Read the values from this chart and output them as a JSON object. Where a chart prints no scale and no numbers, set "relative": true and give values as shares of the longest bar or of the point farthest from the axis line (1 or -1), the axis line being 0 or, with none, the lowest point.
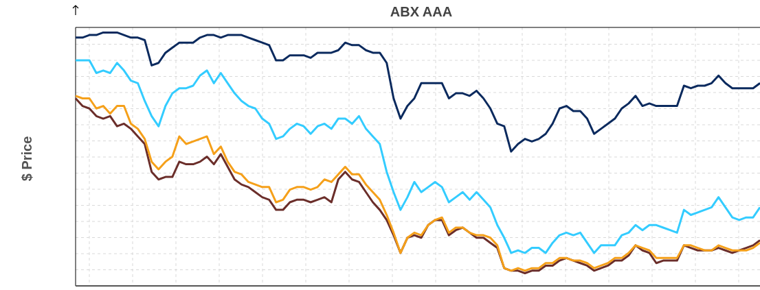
{
  "chart_data": {
    "type": "line",
    "title": "ABX AAA",
    "ylabel": "$ Price",
    "relative": true,
    "grid": true,
    "legend": false,
    "marker": "none",
    "line_style": "solid",
    "categories": [
      null,
      null,
      null,
      null,
      null,
      null,
      null,
      null,
      null,
      null,
      null,
      null,
      null,
      null,
      null,
      null,
      null,
      null,
      null,
      null,
      null,
      null,
      null,
      null,
      null,
      null,
      null,
      null,
      null,
      null,
      null,
      null,
      null,
      null,
      null,
      null,
      null,
      null,
      null,
      null,
      null,
      null,
      null,
      null,
      null,
      null,
      null,
      null,
      null,
      null,
      null,
      null,
      null,
      null,
      null,
      null,
      null,
      null,
      null,
      null,
      null,
      null,
      null,
      null,
      null,
      null,
      null,
      null,
      null,
      null,
      null,
      null,
      null,
      null,
      null,
      null,
      null,
      null,
      null,
      null,
      null,
      null,
      null,
      null,
      null,
      null,
      null,
      null,
      null,
      null,
      null,
      null,
      null,
      null,
      null,
      null,
      null,
      null,
      null,
      null
    ],
    "series": [
      {
        "color": "#0b2a5e",
        "values": [
          0.98,
          0.98,
          0.99,
          0.99,
          1.0,
          1.0,
          1.0,
          0.99,
          0.98,
          0.98,
          0.97,
          0.87,
          0.88,
          0.92,
          0.94,
          0.96,
          0.96,
          0.96,
          0.98,
          0.99,
          0.99,
          0.98,
          0.99,
          0.99,
          0.99,
          0.98,
          0.97,
          0.96,
          0.95,
          0.89,
          0.89,
          0.91,
          0.91,
          0.91,
          0.9,
          0.92,
          0.92,
          0.92,
          0.93,
          0.96,
          0.95,
          0.95,
          0.93,
          0.92,
          0.92,
          0.88,
          0.74,
          0.66,
          0.71,
          0.74,
          0.8,
          0.8,
          0.8,
          0.8,
          0.74,
          0.76,
          0.76,
          0.75,
          0.77,
          0.74,
          0.7,
          0.64,
          0.63,
          0.53,
          0.56,
          0.58,
          0.57,
          0.58,
          0.6,
          0.64,
          0.7,
          0.71,
          0.69,
          0.69,
          0.66,
          0.6,
          0.62,
          0.64,
          0.66,
          0.7,
          0.72,
          0.75,
          0.71,
          0.72,
          0.71,
          0.71,
          0.71,
          0.71,
          0.79,
          0.78,
          0.79,
          0.79,
          0.8,
          0.83,
          0.8,
          0.78,
          0.78,
          0.78,
          0.78,
          0.8
        ]
      },
      {
        "color": "#33ccff",
        "values": [
          0.89,
          0.89,
          0.89,
          0.84,
          0.85,
          0.84,
          0.88,
          0.85,
          0.81,
          0.8,
          0.73,
          0.67,
          0.63,
          0.71,
          0.76,
          0.78,
          0.78,
          0.79,
          0.83,
          0.85,
          0.8,
          0.84,
          0.8,
          0.76,
          0.73,
          0.71,
          0.7,
          0.66,
          0.64,
          0.58,
          0.59,
          0.62,
          0.64,
          0.63,
          0.6,
          0.63,
          0.64,
          0.62,
          0.66,
          0.66,
          0.64,
          0.67,
          0.62,
          0.59,
          0.56,
          0.45,
          0.37,
          0.3,
          0.35,
          0.41,
          0.37,
          0.39,
          0.41,
          0.39,
          0.33,
          0.35,
          0.37,
          0.34,
          0.37,
          0.34,
          0.31,
          0.24,
          0.19,
          0.13,
          0.14,
          0.13,
          0.15,
          0.15,
          0.13,
          0.17,
          0.2,
          0.21,
          0.2,
          0.21,
          0.17,
          0.13,
          0.16,
          0.16,
          0.16,
          0.2,
          0.21,
          0.24,
          0.22,
          0.24,
          0.24,
          0.23,
          0.22,
          0.21,
          0.3,
          0.28,
          0.29,
          0.3,
          0.31,
          0.35,
          0.31,
          0.27,
          0.26,
          0.27,
          0.27,
          0.31
        ]
      },
      {
        "color": "#f5a01a",
        "values": [
          0.75,
          0.74,
          0.74,
          0.7,
          0.71,
          0.68,
          0.71,
          0.71,
          0.64,
          0.62,
          0.58,
          0.49,
          0.46,
          0.49,
          0.51,
          0.59,
          0.56,
          0.57,
          0.58,
          0.59,
          0.52,
          0.55,
          0.49,
          0.45,
          0.44,
          0.41,
          0.4,
          0.39,
          0.39,
          0.33,
          0.34,
          0.38,
          0.39,
          0.39,
          0.38,
          0.39,
          0.42,
          0.41,
          0.44,
          0.47,
          0.44,
          0.44,
          0.4,
          0.37,
          0.34,
          0.28,
          0.21,
          0.13,
          0.19,
          0.21,
          0.2,
          0.24,
          0.26,
          0.27,
          0.21,
          0.23,
          0.23,
          0.21,
          0.2,
          0.2,
          0.19,
          0.16,
          0.07,
          0.06,
          0.07,
          0.06,
          0.07,
          0.07,
          0.09,
          0.09,
          0.11,
          0.11,
          0.1,
          0.1,
          0.09,
          0.07,
          0.08,
          0.09,
          0.11,
          0.11,
          0.13,
          0.16,
          0.15,
          0.14,
          0.11,
          0.11,
          0.11,
          0.11,
          0.16,
          0.16,
          0.15,
          0.14,
          0.14,
          0.16,
          0.15,
          0.14,
          0.14,
          0.14,
          0.15,
          0.17
        ]
      },
      {
        "color": "#6b2e2a",
        "values": [
          0.74,
          0.71,
          0.7,
          0.67,
          0.66,
          0.67,
          0.63,
          0.64,
          0.62,
          0.59,
          0.56,
          0.45,
          0.42,
          0.43,
          0.43,
          0.49,
          0.48,
          0.48,
          0.49,
          0.51,
          0.48,
          0.52,
          0.47,
          0.42,
          0.4,
          0.39,
          0.37,
          0.35,
          0.34,
          0.3,
          0.3,
          0.33,
          0.34,
          0.34,
          0.33,
          0.34,
          0.35,
          0.33,
          0.42,
          0.45,
          0.42,
          0.41,
          0.37,
          0.33,
          0.3,
          0.26,
          0.2,
          0.13,
          0.19,
          0.2,
          0.19,
          0.24,
          0.26,
          0.26,
          0.2,
          0.22,
          0.23,
          0.21,
          0.19,
          0.19,
          0.17,
          0.15,
          0.07,
          0.06,
          0.06,
          0.05,
          0.06,
          0.06,
          0.08,
          0.08,
          0.1,
          0.11,
          0.1,
          0.09,
          0.08,
          0.06,
          0.07,
          0.08,
          0.1,
          0.1,
          0.12,
          0.16,
          0.14,
          0.13,
          0.09,
          0.1,
          0.1,
          0.1,
          0.16,
          0.15,
          0.14,
          0.14,
          0.14,
          0.15,
          0.14,
          0.13,
          0.14,
          0.15,
          0.16,
          0.18
        ]
      }
    ]
  }
}
